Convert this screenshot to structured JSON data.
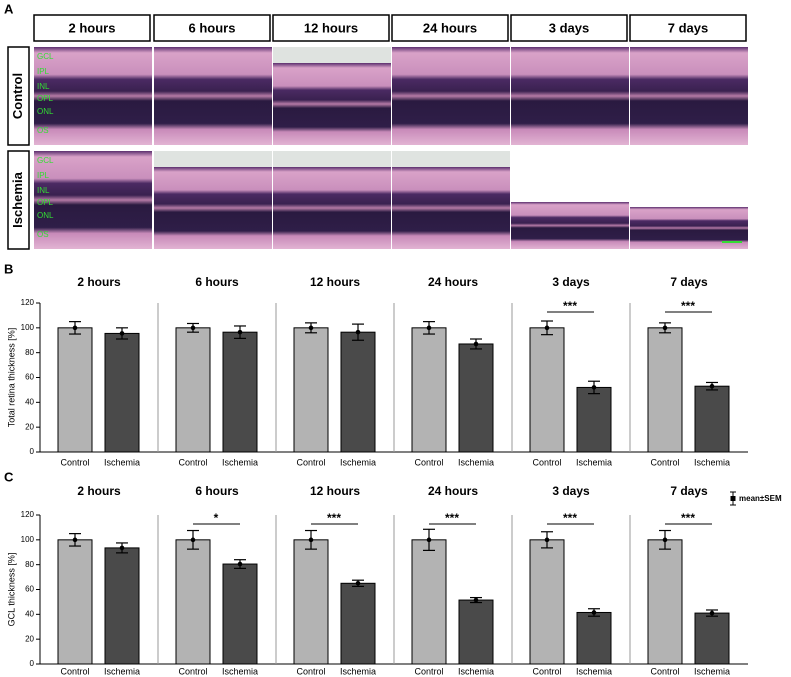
{
  "panel_a": {
    "label": "A",
    "columns": [
      "2 hours",
      "6 hours",
      "12 hours",
      "24 hours",
      "3 days",
      "7 days"
    ],
    "rows": [
      "Control",
      "Ischemia"
    ],
    "layers": [
      "GCL",
      "IPL",
      "INL",
      "OPL",
      "ONL",
      "OS"
    ]
  },
  "chart_data": [
    {
      "type": "bar",
      "panel": "B",
      "ylabel": "Total retina thickness [%]",
      "groups": [
        "2 hours",
        "6 hours",
        "12 hours",
        "24 hours",
        "3 days",
        "7 days"
      ],
      "categories": [
        "Control",
        "Ischemia"
      ],
      "colors": [
        "#b3b3b3",
        "#4a4a4a"
      ],
      "values": [
        [
          100,
          95.5
        ],
        [
          100,
          96.5
        ],
        [
          100,
          96.5
        ],
        [
          100,
          87
        ],
        [
          100,
          52
        ],
        [
          100,
          53
        ]
      ],
      "errors": [
        [
          5,
          4.5
        ],
        [
          3.5,
          5
        ],
        [
          4,
          6.5
        ],
        [
          5,
          4
        ],
        [
          5.5,
          5
        ],
        [
          4,
          3
        ]
      ],
      "significance": [
        null,
        null,
        null,
        null,
        "***",
        "***"
      ],
      "ylim": [
        0,
        120
      ],
      "yticks": [
        0,
        20,
        40,
        60,
        80,
        100,
        120
      ]
    },
    {
      "type": "bar",
      "panel": "C",
      "ylabel": "GCL thickness [%]",
      "groups": [
        "2 hours",
        "6 hours",
        "12 hours",
        "24 hours",
        "3 days",
        "7 days"
      ],
      "categories": [
        "Control",
        "Ischemia"
      ],
      "colors": [
        "#b3b3b3",
        "#4a4a4a"
      ],
      "values": [
        [
          100,
          93.5
        ],
        [
          100,
          80.5
        ],
        [
          100,
          65
        ],
        [
          100,
          51.5
        ],
        [
          100,
          41.5
        ],
        [
          100,
          41
        ]
      ],
      "errors": [
        [
          5,
          4
        ],
        [
          7.5,
          3.5
        ],
        [
          7.5,
          2.5
        ],
        [
          8.5,
          2
        ],
        [
          6.5,
          3
        ],
        [
          7.5,
          2.5
        ]
      ],
      "significance": [
        null,
        "*",
        "***",
        "***",
        "***",
        "***"
      ],
      "legend_label": "mean±SEM",
      "ylim": [
        0,
        120
      ],
      "yticks": [
        0,
        20,
        40,
        60,
        80,
        100,
        120
      ]
    }
  ]
}
